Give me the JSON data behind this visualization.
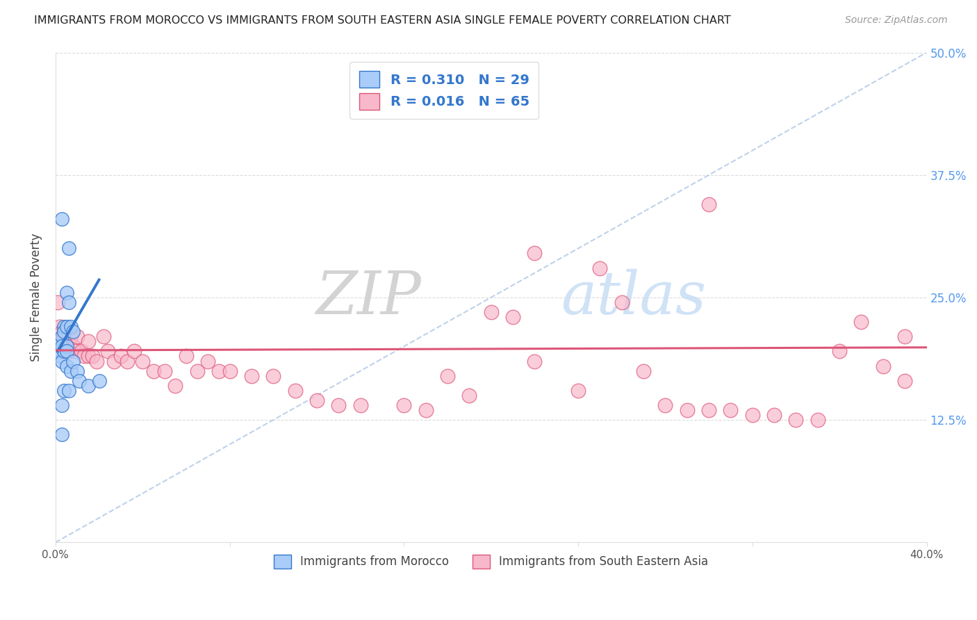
{
  "title": "IMMIGRANTS FROM MOROCCO VS IMMIGRANTS FROM SOUTH EASTERN ASIA SINGLE FEMALE POVERTY CORRELATION CHART",
  "source": "Source: ZipAtlas.com",
  "ylabel": "Single Female Poverty",
  "ytick_labels": [
    "",
    "12.5%",
    "25.0%",
    "37.5%",
    "50.0%"
  ],
  "ytick_values": [
    0,
    0.125,
    0.25,
    0.375,
    0.5
  ],
  "xlim": [
    0.0,
    0.4
  ],
  "ylim": [
    0.0,
    0.5
  ],
  "legend_label1": "Immigrants from Morocco",
  "legend_label2": "Immigrants from South Eastern Asia",
  "R1": 0.31,
  "N1": 29,
  "R2": 0.016,
  "N2": 65,
  "color1": "#aaccf8",
  "color2": "#f8b8cc",
  "line_color1": "#3377cc",
  "line_color2": "#dd5577",
  "diagonal_color": "#b8cce8",
  "watermark_zip": "ZIP",
  "watermark_atlas": "atlas",
  "morocco_x": [
    0.001,
    0.002,
    0.002,
    0.003,
    0.003,
    0.003,
    0.003,
    0.003,
    0.004,
    0.004,
    0.004,
    0.004,
    0.005,
    0.005,
    0.005,
    0.005,
    0.005,
    0.006,
    0.006,
    0.006,
    0.007,
    0.007,
    0.008,
    0.008,
    0.01,
    0.011,
    0.015,
    0.02,
    0.003
  ],
  "morocco_y": [
    0.2,
    0.195,
    0.19,
    0.21,
    0.2,
    0.185,
    0.14,
    0.11,
    0.22,
    0.215,
    0.195,
    0.155,
    0.255,
    0.22,
    0.2,
    0.195,
    0.18,
    0.3,
    0.245,
    0.155,
    0.22,
    0.175,
    0.215,
    0.185,
    0.175,
    0.165,
    0.16,
    0.165,
    0.33
  ],
  "sea_x": [
    0.001,
    0.002,
    0.003,
    0.003,
    0.004,
    0.005,
    0.005,
    0.006,
    0.007,
    0.008,
    0.009,
    0.01,
    0.012,
    0.013,
    0.015,
    0.015,
    0.017,
    0.019,
    0.022,
    0.024,
    0.027,
    0.03,
    0.033,
    0.036,
    0.04,
    0.045,
    0.05,
    0.055,
    0.06,
    0.065,
    0.07,
    0.075,
    0.08,
    0.09,
    0.1,
    0.11,
    0.12,
    0.13,
    0.14,
    0.16,
    0.17,
    0.18,
    0.19,
    0.2,
    0.21,
    0.22,
    0.24,
    0.25,
    0.26,
    0.27,
    0.28,
    0.29,
    0.3,
    0.31,
    0.32,
    0.33,
    0.34,
    0.35,
    0.36,
    0.37,
    0.38,
    0.39,
    0.39,
    0.22,
    0.3
  ],
  "sea_y": [
    0.245,
    0.22,
    0.215,
    0.195,
    0.21,
    0.215,
    0.195,
    0.195,
    0.21,
    0.2,
    0.195,
    0.21,
    0.195,
    0.19,
    0.205,
    0.19,
    0.19,
    0.185,
    0.21,
    0.195,
    0.185,
    0.19,
    0.185,
    0.195,
    0.185,
    0.175,
    0.175,
    0.16,
    0.19,
    0.175,
    0.185,
    0.175,
    0.175,
    0.17,
    0.17,
    0.155,
    0.145,
    0.14,
    0.14,
    0.14,
    0.135,
    0.17,
    0.15,
    0.235,
    0.23,
    0.185,
    0.155,
    0.28,
    0.245,
    0.175,
    0.14,
    0.135,
    0.135,
    0.135,
    0.13,
    0.13,
    0.125,
    0.125,
    0.195,
    0.225,
    0.18,
    0.21,
    0.165,
    0.295,
    0.345
  ],
  "morocco_line_x": [
    0.001,
    0.02
  ],
  "morocco_line_y": [
    0.195,
    0.268
  ],
  "sea_line_x": [
    0.0,
    0.4
  ],
  "sea_line_y": [
    0.196,
    0.199
  ]
}
